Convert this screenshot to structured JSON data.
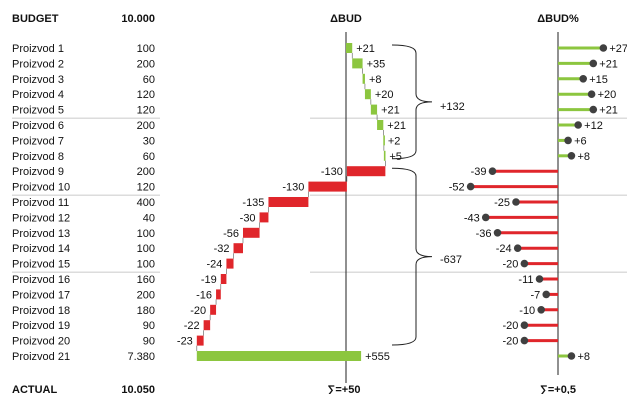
{
  "header": {
    "budget_label": "BUDGET",
    "budget_total": "10.000",
    "delta_label": "ΔBUD",
    "delta_pct_label": "ΔBUD%"
  },
  "footer": {
    "actual_label": "ACTUAL",
    "actual_total": "10.050",
    "delta_sum": "∑=+50",
    "delta_pct_sum": "∑=+0,5"
  },
  "brackets": {
    "upper_label": "+132",
    "lower_label": "-637"
  },
  "colors": {
    "positive": "#8cc63f",
    "negative": "#e0262b",
    "dot": "#404040",
    "separator": "#b8b8b8",
    "axis": "#222222"
  },
  "chart_data": [
    {
      "type": "bar",
      "title": "ΔBUD",
      "categories": [
        "Proizvod 1",
        "Proizvod 2",
        "Proizvod 3",
        "Proizvod 4",
        "Proizvod 5",
        "Proizvod 6",
        "Proizvod 7",
        "Proizvod 8",
        "Proizvod 9",
        "Proizvod 10",
        "Proizvod 11",
        "Proizvod 12",
        "Proizvod 13",
        "Proizvod 14",
        "Proizvod 15",
        "Proizvod 16",
        "Proizvod 17",
        "Proizvod 18",
        "Proizvod 19",
        "Proizvod 20",
        "Proizvod 21"
      ],
      "budget": [
        "100",
        "200",
        "60",
        "120",
        "120",
        "200",
        "30",
        "60",
        "200",
        "120",
        "400",
        "40",
        "100",
        "100",
        "100",
        "160",
        "200",
        "180",
        "90",
        "90",
        "7.380"
      ],
      "values": [
        21,
        35,
        8,
        20,
        21,
        21,
        2,
        5,
        -130,
        -130,
        -135,
        -30,
        -56,
        -32,
        -24,
        -19,
        -16,
        -20,
        -22,
        -23,
        555
      ],
      "labels": [
        "+21",
        "+35",
        "+8",
        "+20",
        "+21",
        "+21",
        "+2",
        "+5",
        "-130",
        "-130",
        "-135",
        "-30",
        "-56",
        "-32",
        "-24",
        "-19",
        "-16",
        "-20",
        "-22",
        "-23",
        "+555"
      ],
      "waterfall": true
    },
    {
      "type": "lollipop",
      "title": "ΔBUD%",
      "values": [
        27,
        21,
        15,
        20,
        21,
        12,
        6,
        8,
        -39,
        -52,
        -25,
        -43,
        -36,
        -24,
        -20,
        -11,
        -7,
        -10,
        -20,
        -20,
        8
      ],
      "labels": [
        "+27",
        "+21",
        "+15",
        "+20",
        "+21",
        "+12",
        "+6",
        "+8",
        "-39",
        "-52",
        "-25",
        "-43",
        "-36",
        "-24",
        "-20",
        "-11",
        "-7",
        "-10",
        "-20",
        "-20",
        "+8"
      ]
    }
  ]
}
